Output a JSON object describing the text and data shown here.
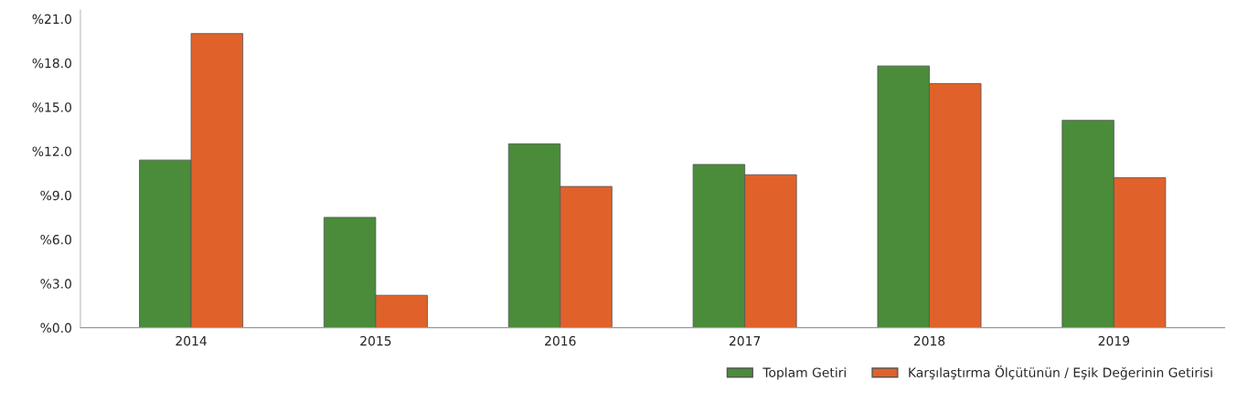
{
  "chart_data": {
    "type": "bar",
    "categories": [
      "2014",
      "2015",
      "2016",
      "2017",
      "2018",
      "2019"
    ],
    "series": [
      {
        "name": "Toplam Getiri",
        "color": "#4a8c3a",
        "values": [
          11.4,
          7.5,
          12.5,
          11.1,
          17.8,
          14.1
        ]
      },
      {
        "name": "Karşılaştırma Ölçütünün / Eşik Değerinin Getirisi",
        "color": "#e0622a",
        "values": [
          20.0,
          2.2,
          9.6,
          10.4,
          16.6,
          10.2
        ]
      }
    ],
    "ylim": [
      0,
      21.6
    ],
    "yticks": [
      {
        "value": 0,
        "label": "%0.0"
      },
      {
        "value": 3,
        "label": "%3.0"
      },
      {
        "value": 6,
        "label": "%6.0"
      },
      {
        "value": 9,
        "label": "%9.0"
      },
      {
        "value": 12,
        "label": "%12.0"
      },
      {
        "value": 15,
        "label": "%15.0"
      },
      {
        "value": 18,
        "label": "%18.0"
      },
      {
        "value": 21,
        "label": "%21.0"
      }
    ],
    "grid": false,
    "legend": "bottom right"
  }
}
